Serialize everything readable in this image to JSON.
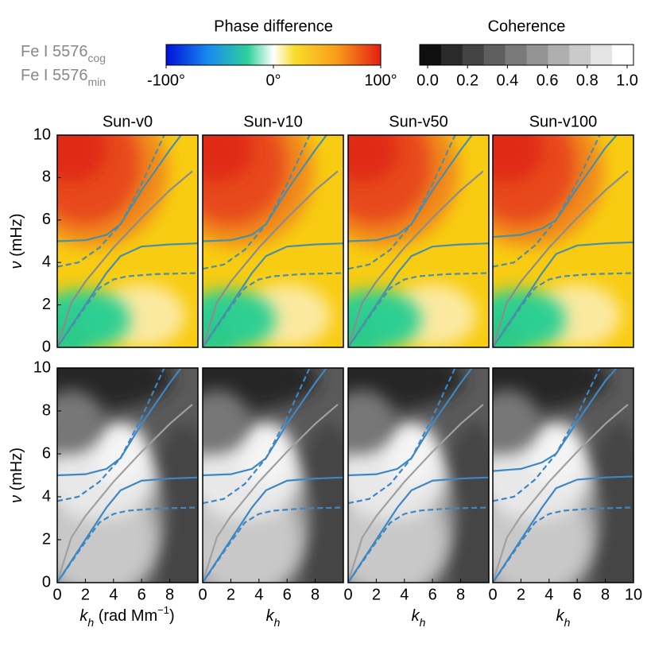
{
  "labels": [
    {
      "text": "Fe I 5576",
      "sub": "cog"
    },
    {
      "text": "Fe I 5576",
      "sub": "min"
    }
  ],
  "colorbars": [
    {
      "title": "Phase difference",
      "colormap": "phase",
      "lim": [
        -100,
        100
      ],
      "ticks": [
        {
          "value": -100,
          "label": "-100°"
        },
        {
          "value": 0,
          "label": "0°"
        },
        {
          "value": 100,
          "label": "100°"
        }
      ]
    },
    {
      "title": "Coherence",
      "colormap": "coherence",
      "lim": [
        0,
        1
      ],
      "ticks": [
        {
          "value": 0,
          "label": "0.0"
        },
        {
          "value": 0.2,
          "label": "0.2"
        },
        {
          "value": 0.4,
          "label": "0.4"
        },
        {
          "value": 0.6,
          "label": "0.6"
        },
        {
          "value": 0.8,
          "label": "0.8"
        },
        {
          "value": 1,
          "label": "1.0"
        }
      ]
    }
  ],
  "chart_data": [
    {
      "type": "heatmap",
      "colormap": "phase",
      "title": "Sun-v0",
      "xlim": [
        0,
        10
      ],
      "ylim": [
        0,
        10
      ],
      "yticks": [
        0,
        2,
        4,
        6,
        8,
        10
      ],
      "ylabel": [
        {
          "text": "ν",
          "style": "i"
        },
        {
          "text": " (mHz)",
          "style": "plain"
        }
      ],
      "series": [
        {
          "color": "#8c8c8c",
          "dash": false,
          "x": [
            0,
            1,
            2,
            4,
            6,
            8,
            9.6
          ],
          "values": [
            0,
            2.1,
            3.1,
            4.7,
            6.1,
            7.4,
            8.3
          ]
        },
        {
          "color": "#4a8fa8",
          "dash": false,
          "x": [
            0,
            2,
            3.5,
            4.5,
            6,
            8,
            8.8
          ],
          "values": [
            5.0,
            5.05,
            5.3,
            5.8,
            7.4,
            9.3,
            10
          ]
        },
        {
          "color": "#4a8fa8",
          "dash": false,
          "x": [
            0,
            2,
            3.5,
            4.5,
            6,
            8,
            10
          ],
          "values": [
            0,
            2,
            3.5,
            4.3,
            4.75,
            4.85,
            4.9
          ]
        },
        {
          "color": "#4a8fa8",
          "dash": true,
          "x": [
            0,
            1.5,
            3,
            4.5,
            6,
            7.6
          ],
          "values": [
            3.8,
            4.0,
            4.7,
            5.8,
            7.7,
            10
          ]
        },
        {
          "color": "#4a8fa8",
          "dash": true,
          "x": [
            0,
            2,
            3,
            4,
            5,
            7,
            10
          ],
          "values": [
            0,
            1.9,
            2.8,
            3.2,
            3.35,
            3.45,
            3.5
          ]
        }
      ]
    },
    {
      "type": "heatmap",
      "colormap": "phase",
      "title": "Sun-v10",
      "xlim": [
        0,
        10
      ],
      "ylim": [
        0,
        10
      ],
      "series": [
        {
          "color": "#8c8c8c",
          "dash": false,
          "x": [
            0,
            1,
            2,
            4,
            6,
            8,
            9.6
          ],
          "values": [
            0,
            2.1,
            3.1,
            4.7,
            6.1,
            7.4,
            8.3
          ]
        },
        {
          "color": "#4a8fa8",
          "dash": false,
          "x": [
            0,
            2,
            3.5,
            4.5,
            6,
            8,
            8.8
          ],
          "values": [
            5.0,
            5.05,
            5.3,
            5.8,
            7.4,
            9.3,
            10
          ]
        },
        {
          "color": "#4a8fa8",
          "dash": false,
          "x": [
            0,
            2,
            3.5,
            4.5,
            6,
            8,
            10
          ],
          "values": [
            0,
            2,
            3.5,
            4.3,
            4.75,
            4.85,
            4.9
          ]
        },
        {
          "color": "#4a8fa8",
          "dash": true,
          "x": [
            0,
            1.5,
            3,
            4.5,
            6,
            7.6
          ],
          "values": [
            3.7,
            3.9,
            4.6,
            5.8,
            7.7,
            10
          ]
        },
        {
          "color": "#4a8fa8",
          "dash": true,
          "x": [
            0,
            2,
            3,
            4,
            5,
            7,
            10
          ],
          "values": [
            0,
            1.9,
            2.8,
            3.2,
            3.35,
            3.45,
            3.5
          ]
        }
      ]
    },
    {
      "type": "heatmap",
      "colormap": "phase",
      "title": "Sun-v50",
      "xlim": [
        0,
        10
      ],
      "ylim": [
        0,
        10
      ],
      "series": [
        {
          "color": "#8c8c8c",
          "dash": false,
          "x": [
            0,
            1,
            2,
            4,
            6,
            8,
            9.6
          ],
          "values": [
            0,
            2.1,
            3.1,
            4.7,
            6.1,
            7.4,
            8.3
          ]
        },
        {
          "color": "#4a8fa8",
          "dash": false,
          "x": [
            0,
            2,
            3.5,
            4.5,
            6,
            8,
            8.8
          ],
          "values": [
            5.0,
            5.05,
            5.3,
            5.8,
            7.4,
            9.3,
            10
          ]
        },
        {
          "color": "#4a8fa8",
          "dash": false,
          "x": [
            0,
            2,
            3.5,
            4.5,
            6,
            8,
            10
          ],
          "values": [
            0,
            2,
            3.5,
            4.3,
            4.75,
            4.85,
            4.9
          ]
        },
        {
          "color": "#4a8fa8",
          "dash": true,
          "x": [
            0,
            1.5,
            3,
            4.5,
            6,
            7.6
          ],
          "values": [
            3.7,
            3.9,
            4.6,
            5.8,
            7.7,
            10
          ]
        },
        {
          "color": "#4a8fa8",
          "dash": true,
          "x": [
            0,
            2,
            3,
            4,
            5,
            7,
            10
          ],
          "values": [
            0,
            1.9,
            2.8,
            3.2,
            3.35,
            3.45,
            3.5
          ]
        }
      ]
    },
    {
      "type": "heatmap",
      "colormap": "phase",
      "title": "Sun-v100",
      "xlim": [
        0,
        10
      ],
      "ylim": [
        0,
        10
      ],
      "series": [
        {
          "color": "#8c8c8c",
          "dash": false,
          "x": [
            0,
            1,
            2,
            4,
            6,
            8,
            9.6
          ],
          "values": [
            0,
            2.1,
            3.1,
            4.7,
            6.1,
            7.4,
            8.3
          ]
        },
        {
          "color": "#4a8fa8",
          "dash": false,
          "x": [
            0,
            2,
            3.5,
            4.5,
            6,
            8,
            8.8
          ],
          "values": [
            5.2,
            5.3,
            5.6,
            6.0,
            7.5,
            9.4,
            10
          ]
        },
        {
          "color": "#4a8fa8",
          "dash": false,
          "x": [
            0,
            2,
            3.5,
            4.5,
            6,
            8,
            10
          ],
          "values": [
            0,
            2,
            3.5,
            4.4,
            4.8,
            4.9,
            4.95
          ]
        },
        {
          "color": "#4a8fa8",
          "dash": true,
          "x": [
            0,
            1.5,
            3,
            4.5,
            6,
            7.6
          ],
          "values": [
            3.8,
            4.0,
            4.8,
            6.0,
            7.8,
            10
          ]
        },
        {
          "color": "#4a8fa8",
          "dash": true,
          "x": [
            0,
            2,
            3,
            4,
            5,
            7,
            10
          ],
          "values": [
            0,
            1.9,
            2.8,
            3.2,
            3.35,
            3.45,
            3.5
          ]
        }
      ]
    },
    {
      "type": "heatmap",
      "colormap": "coherence",
      "xlim": [
        0,
        10
      ],
      "ylim": [
        0,
        10
      ],
      "yticks": [
        0,
        2,
        4,
        6,
        8,
        10
      ],
      "xticks": [
        0,
        2,
        4,
        6,
        8
      ],
      "ylabel": [
        {
          "text": "ν",
          "style": "i"
        },
        {
          "text": " (mHz)",
          "style": "plain"
        }
      ],
      "xlabel": [
        {
          "text": "k",
          "style": "i"
        },
        {
          "text": "h",
          "style": "sub"
        },
        {
          "text": " (rad Mm",
          "style": "plain"
        },
        {
          "text": "−1",
          "style": "sup"
        },
        {
          "text": ")",
          "style": "plain"
        }
      ],
      "series": [
        {
          "color": "#a0a0a0",
          "dash": false,
          "x": [
            0,
            1,
            2,
            4,
            6,
            8,
            9.6
          ],
          "values": [
            0,
            2.1,
            3.1,
            4.7,
            6.1,
            7.4,
            8.3
          ]
        },
        {
          "color": "#3d87c4",
          "dash": false,
          "x": [
            0,
            2,
            3.5,
            4.5,
            6,
            8,
            8.8
          ],
          "values": [
            5.0,
            5.05,
            5.3,
            5.8,
            7.4,
            9.3,
            10
          ]
        },
        {
          "color": "#3d87c4",
          "dash": false,
          "x": [
            0,
            2,
            3.5,
            4.5,
            6,
            8,
            10
          ],
          "values": [
            0,
            2,
            3.5,
            4.3,
            4.75,
            4.85,
            4.9
          ]
        },
        {
          "color": "#3d87c4",
          "dash": true,
          "x": [
            0,
            1.5,
            3,
            4.5,
            6,
            7.6
          ],
          "values": [
            3.8,
            4.0,
            4.7,
            5.8,
            7.7,
            10
          ]
        },
        {
          "color": "#3d87c4",
          "dash": true,
          "x": [
            0,
            2,
            3,
            4,
            5,
            7,
            10
          ],
          "values": [
            0,
            1.9,
            2.8,
            3.2,
            3.35,
            3.45,
            3.5
          ]
        }
      ]
    },
    {
      "type": "heatmap",
      "colormap": "coherence",
      "xlim": [
        0,
        10
      ],
      "ylim": [
        0,
        10
      ],
      "xticks": [
        0,
        2,
        4,
        6,
        8
      ],
      "xlabel": [
        {
          "text": "k",
          "style": "i"
        },
        {
          "text": "h",
          "style": "sub"
        }
      ],
      "series": [
        {
          "color": "#a0a0a0",
          "dash": false,
          "x": [
            0,
            1,
            2,
            4,
            6,
            8,
            9.6
          ],
          "values": [
            0,
            2.1,
            3.1,
            4.7,
            6.1,
            7.4,
            8.3
          ]
        },
        {
          "color": "#3d87c4",
          "dash": false,
          "x": [
            0,
            2,
            3.5,
            4.5,
            6,
            8,
            8.8
          ],
          "values": [
            5.0,
            5.05,
            5.3,
            5.8,
            7.4,
            9.3,
            10
          ]
        },
        {
          "color": "#3d87c4",
          "dash": false,
          "x": [
            0,
            2,
            3.5,
            4.5,
            6,
            8,
            10
          ],
          "values": [
            0,
            2,
            3.5,
            4.3,
            4.75,
            4.85,
            4.9
          ]
        },
        {
          "color": "#3d87c4",
          "dash": true,
          "x": [
            0,
            1.5,
            3,
            4.5,
            6,
            7.6
          ],
          "values": [
            3.7,
            3.9,
            4.6,
            5.8,
            7.7,
            10
          ]
        },
        {
          "color": "#3d87c4",
          "dash": true,
          "x": [
            0,
            2,
            3,
            4,
            5,
            7,
            10
          ],
          "values": [
            0,
            1.9,
            2.8,
            3.2,
            3.35,
            3.45,
            3.5
          ]
        }
      ]
    },
    {
      "type": "heatmap",
      "colormap": "coherence",
      "xlim": [
        0,
        10
      ],
      "ylim": [
        0,
        10
      ],
      "xticks": [
        0,
        2,
        4,
        6,
        8
      ],
      "xlabel": [
        {
          "text": "k",
          "style": "i"
        },
        {
          "text": "h",
          "style": "sub"
        }
      ],
      "series": [
        {
          "color": "#a0a0a0",
          "dash": false,
          "x": [
            0,
            1,
            2,
            4,
            6,
            8,
            9.6
          ],
          "values": [
            0,
            2.1,
            3.1,
            4.7,
            6.1,
            7.4,
            8.3
          ]
        },
        {
          "color": "#3d87c4",
          "dash": false,
          "x": [
            0,
            2,
            3.5,
            4.5,
            6,
            8,
            8.8
          ],
          "values": [
            5.0,
            5.05,
            5.3,
            5.8,
            7.4,
            9.3,
            10
          ]
        },
        {
          "color": "#3d87c4",
          "dash": false,
          "x": [
            0,
            2,
            3.5,
            4.5,
            6,
            8,
            10
          ],
          "values": [
            0,
            2,
            3.5,
            4.3,
            4.75,
            4.85,
            4.9
          ]
        },
        {
          "color": "#3d87c4",
          "dash": true,
          "x": [
            0,
            1.5,
            3,
            4.5,
            6,
            7.6
          ],
          "values": [
            3.7,
            3.9,
            4.6,
            5.8,
            7.7,
            10
          ]
        },
        {
          "color": "#3d87c4",
          "dash": true,
          "x": [
            0,
            2,
            3,
            4,
            5,
            7,
            10
          ],
          "values": [
            0,
            1.9,
            2.8,
            3.2,
            3.35,
            3.45,
            3.5
          ]
        }
      ]
    },
    {
      "type": "heatmap",
      "colormap": "coherence",
      "xlim": [
        0,
        10
      ],
      "ylim": [
        0,
        10
      ],
      "xticks": [
        0,
        2,
        4,
        6,
        8,
        10
      ],
      "xlabel": [
        {
          "text": "k",
          "style": "i"
        },
        {
          "text": "h",
          "style": "sub"
        }
      ],
      "series": [
        {
          "color": "#a0a0a0",
          "dash": false,
          "x": [
            0,
            1,
            2,
            4,
            6,
            8,
            9.6
          ],
          "values": [
            0,
            2.1,
            3.1,
            4.7,
            6.1,
            7.4,
            8.3
          ]
        },
        {
          "color": "#3d87c4",
          "dash": false,
          "x": [
            0,
            2,
            3.5,
            4.5,
            6,
            8,
            8.8
          ],
          "values": [
            5.2,
            5.3,
            5.6,
            6.0,
            7.5,
            9.4,
            10
          ]
        },
        {
          "color": "#3d87c4",
          "dash": false,
          "x": [
            0,
            2,
            3.5,
            4.5,
            6,
            8,
            10
          ],
          "values": [
            0,
            2,
            3.5,
            4.4,
            4.8,
            4.9,
            4.95
          ]
        },
        {
          "color": "#3d87c4",
          "dash": true,
          "x": [
            0,
            1.5,
            3,
            4.5,
            6,
            7.6
          ],
          "values": [
            3.8,
            4.0,
            4.8,
            6.0,
            7.8,
            10
          ]
        },
        {
          "color": "#3d87c4",
          "dash": true,
          "x": [
            0,
            2,
            3,
            4,
            5,
            7,
            10
          ],
          "values": [
            0,
            1.9,
            2.8,
            3.2,
            3.35,
            3.45,
            3.5
          ]
        }
      ]
    }
  ]
}
